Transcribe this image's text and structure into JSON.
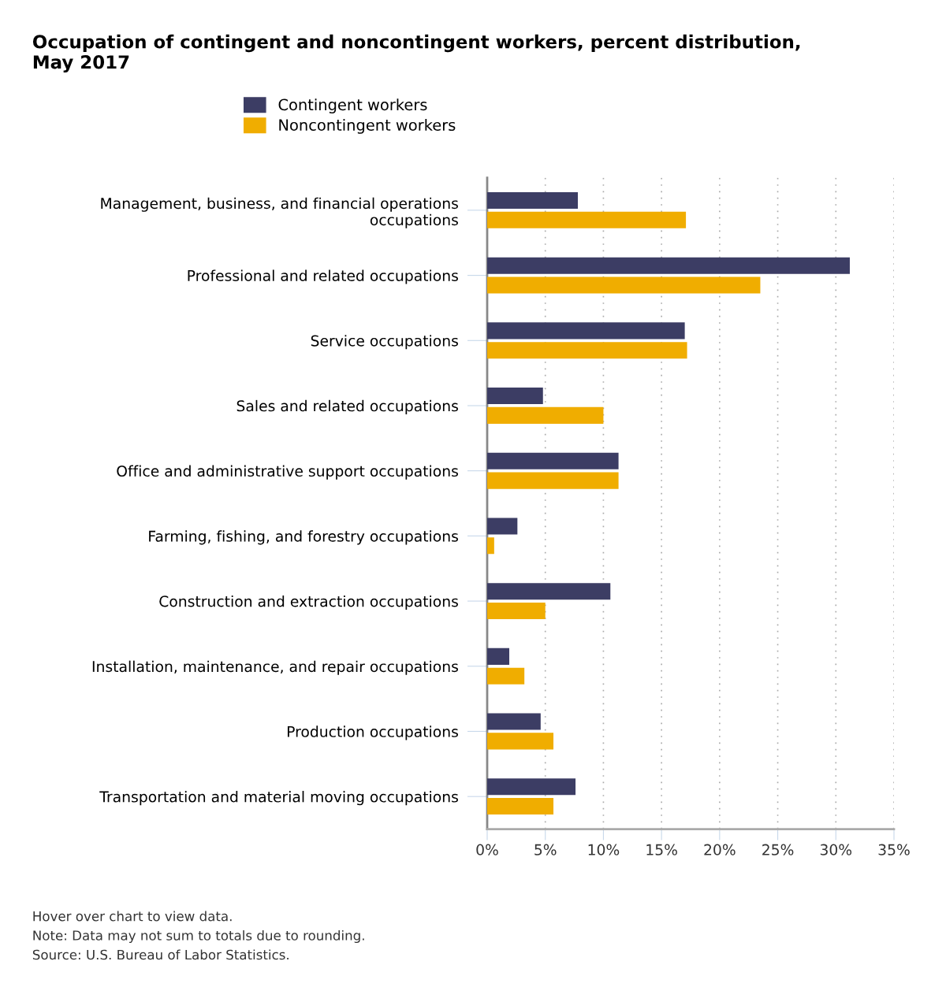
{
  "chart_data": {
    "type": "bar",
    "orientation": "horizontal",
    "title": "Occupation of contingent and noncontingent workers, percent distribution,\nMay 2017",
    "categories": [
      "Management, business, and financial operations\noccupations",
      "Professional and related occupations",
      "Service occupations",
      "Sales and related occupations",
      "Office and administrative support occupations",
      "Farming, fishing, and forestry occupations",
      "Construction and extraction occupations",
      "Installation, maintenance, and repair occupations",
      "Production occupations",
      "Transportation and material moving occupations"
    ],
    "series": [
      {
        "name": "Contingent workers",
        "color": "#3c3d64",
        "values": [
          7.8,
          31.2,
          17.0,
          4.8,
          11.3,
          2.6,
          10.6,
          1.9,
          4.6,
          7.6
        ]
      },
      {
        "name": "Noncontingent workers",
        "color": "#f0ad00",
        "values": [
          17.1,
          23.5,
          17.2,
          10.0,
          11.3,
          0.6,
          5.0,
          3.2,
          5.7,
          5.7
        ]
      }
    ],
    "xlim": [
      0,
      35
    ],
    "xticks": [
      {
        "value": 0,
        "label": "0%"
      },
      {
        "value": 5,
        "label": "5%"
      },
      {
        "value": 10,
        "label": "10%"
      },
      {
        "value": 15,
        "label": "15%"
      },
      {
        "value": 20,
        "label": "20%"
      },
      {
        "value": 25,
        "label": "25%"
      },
      {
        "value": 30,
        "label": "30%"
      },
      {
        "value": 35,
        "label": "35%"
      }
    ],
    "grid": "x",
    "legend": "top",
    "annotations": [
      "Hover over chart to view data.",
      "Note: Data may not sum to totals due to rounding.",
      "Source: U.S. Bureau of Labor Statistics."
    ]
  }
}
